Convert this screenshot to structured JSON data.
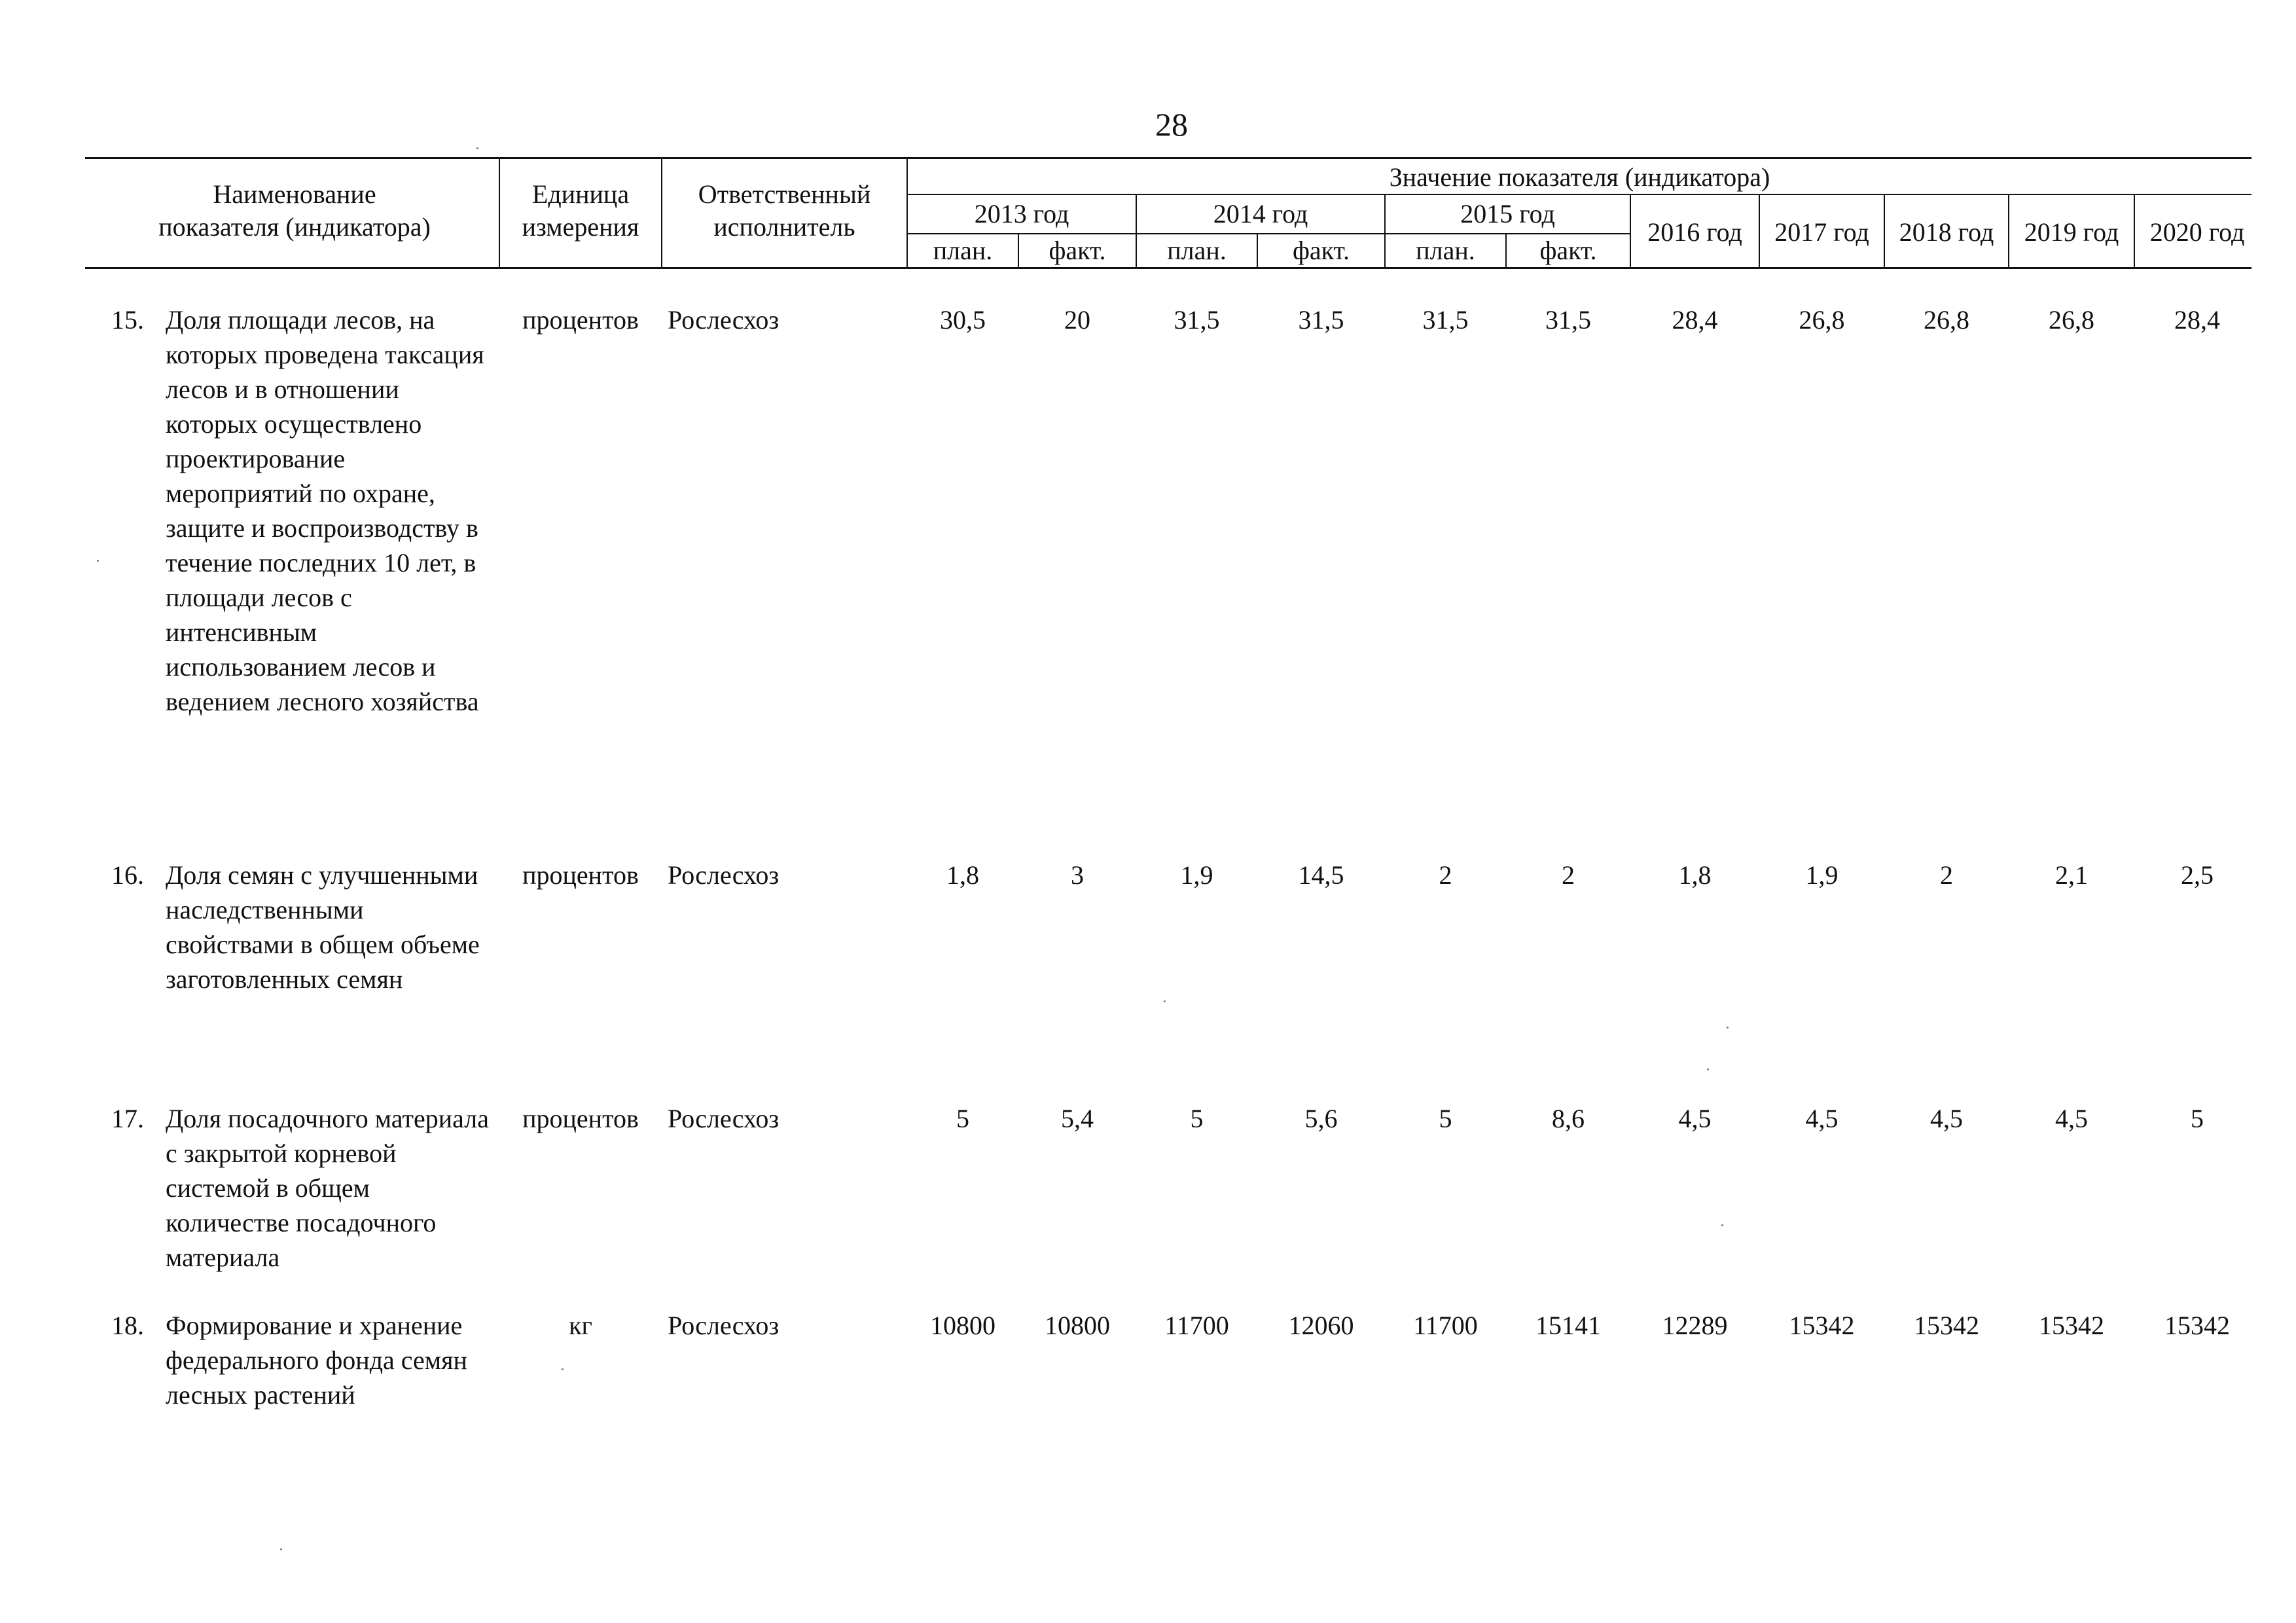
{
  "page_number": "28",
  "table": {
    "headers": {
      "name": [
        "Наименование",
        "показателя (индикатора)"
      ],
      "unit": [
        "Единица",
        "измерения"
      ],
      "executor": [
        "Ответственный",
        "исполнитель"
      ],
      "value_group": "Значение показателя (индикатора)",
      "years_split": [
        "2013 год",
        "2014 год",
        "2015 год"
      ],
      "sub": [
        "план.",
        "факт.",
        "план.",
        "факт.",
        "план.",
        "факт."
      ],
      "years_single": [
        "2016 год",
        "2017 год",
        "2018 год",
        "2019 год",
        "2020 год"
      ]
    },
    "rows": [
      {
        "no": "15.",
        "name": "Доля площади лесов, на которых проведена таксация лесов и в отношении которых осуществлено проектирование мероприятий по охране, защите и воспроизводству в течение последних 10 лет, в площади лесов с интенсивным использованием лесов и ведением лесного хозяйства",
        "unit": "процентов",
        "executor": "Рослесхоз",
        "values": [
          "30,5",
          "20",
          "31,5",
          "31,5",
          "31,5",
          "31,5",
          "28,4",
          "26,8",
          "26,8",
          "26,8",
          "28,4"
        ]
      },
      {
        "no": "16.",
        "name": "Доля семян с улучшенными наследственными свойствами в общем объеме заготовленных семян",
        "unit": "процентов",
        "executor": "Рослесхоз",
        "values": [
          "1,8",
          "3",
          "1,9",
          "14,5",
          "2",
          "2",
          "1,8",
          "1,9",
          "2",
          "2,1",
          "2,5"
        ]
      },
      {
        "no": "17.",
        "name": "Доля посадочного материала с закрытой корневой системой в общем количестве посадочного материала",
        "unit": "процентов",
        "executor": "Рослесхоз",
        "values": [
          "5",
          "5,4",
          "5",
          "5,6",
          "5",
          "8,6",
          "4,5",
          "4,5",
          "4,5",
          "4,5",
          "5"
        ]
      },
      {
        "no": "18.",
        "name": "Формирование и хранение федерального фонда семян лесных растений",
        "unit": "кг",
        "executor": "Рослесхоз",
        "values": [
          "10800",
          "10800",
          "11700",
          "12060",
          "11700",
          "15141",
          "12289",
          "15342",
          "15342",
          "15342",
          "15342"
        ]
      }
    ]
  }
}
